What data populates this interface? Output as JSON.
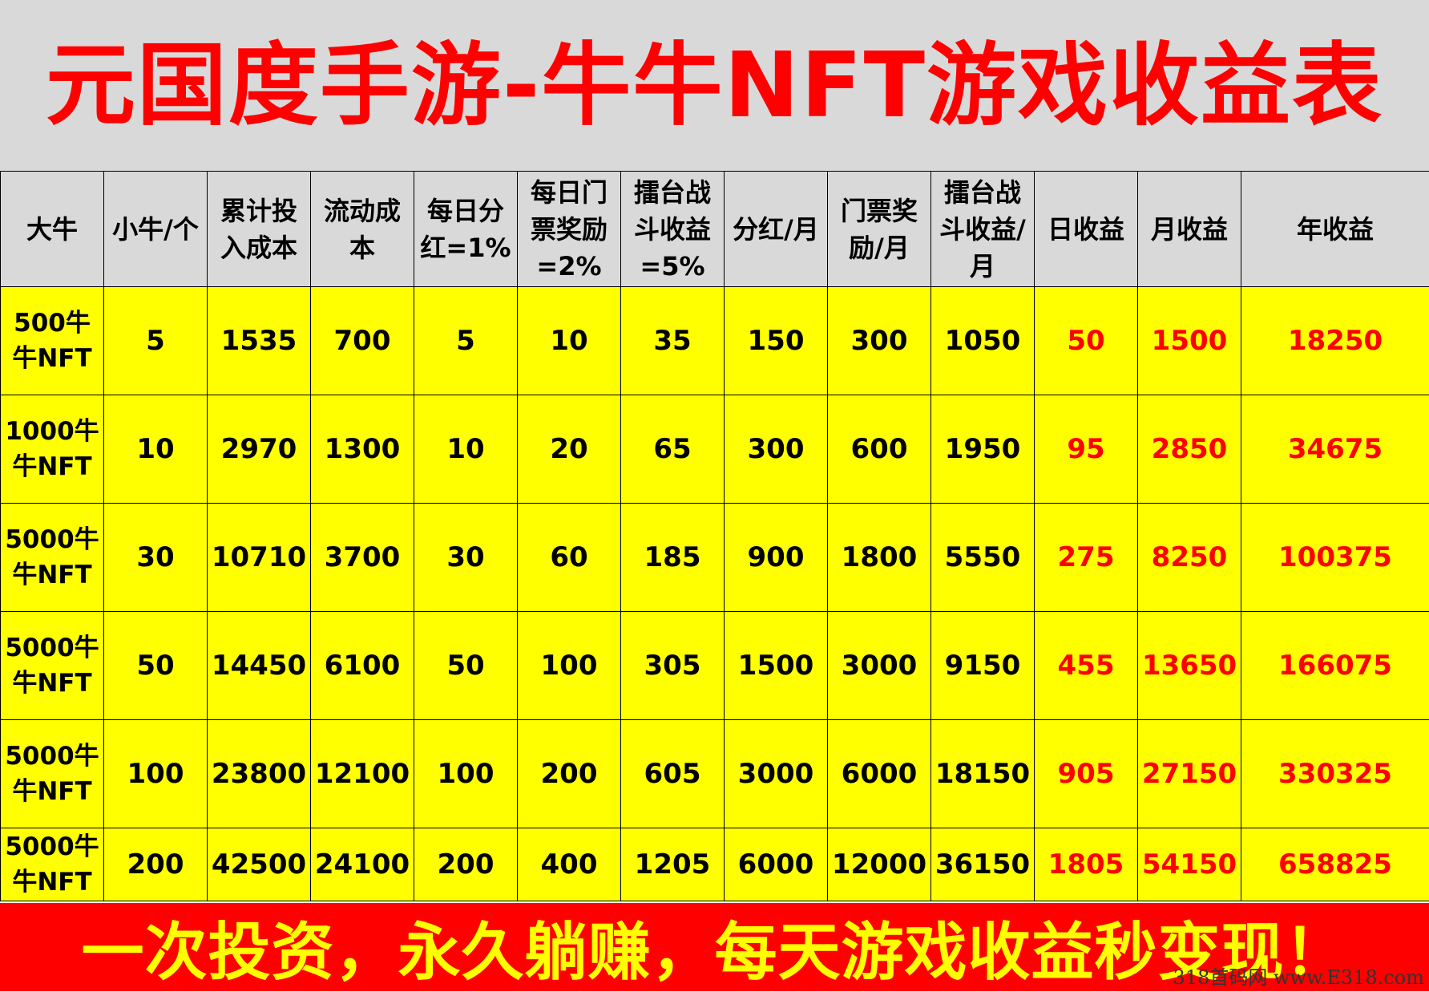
{
  "title": "元国度手游-牛牛NFT游戏收益表",
  "headers": [
    [
      "大牛"
    ],
    [
      "小牛/个"
    ],
    [
      "累计投",
      "入成本"
    ],
    [
      "流动成",
      "本"
    ],
    [
      "每日分",
      "红=1%"
    ],
    [
      "每日门",
      "票奖励",
      "=2%"
    ],
    [
      "擂台战",
      "斗收益",
      "=5%"
    ],
    [
      "分红/月"
    ],
    [
      "门票奖",
      "励/月"
    ],
    [
      "擂台战",
      "斗收益/",
      "月"
    ],
    [
      "日收益"
    ],
    [
      "月收益"
    ],
    [
      "年收益"
    ]
  ],
  "rows": [
    [
      [
        "500牛",
        "牛NFT"
      ],
      "5",
      "1535",
      "700",
      "5",
      "10",
      "35",
      "150",
      "300",
      "1050",
      "50",
      "1500",
      "18250"
    ],
    [
      [
        "1000牛",
        "牛NFT"
      ],
      "10",
      "2970",
      "1300",
      "10",
      "20",
      "65",
      "300",
      "600",
      "1950",
      "95",
      "2850",
      "34675"
    ],
    [
      [
        "5000牛",
        "牛NFT"
      ],
      "30",
      "10710",
      "3700",
      "30",
      "60",
      "185",
      "900",
      "1800",
      "5550",
      "275",
      "8250",
      "100375"
    ],
    [
      [
        "5000牛",
        "牛NFT"
      ],
      "50",
      "14450",
      "6100",
      "50",
      "100",
      "305",
      "1500",
      "3000",
      "9150",
      "455",
      "13650",
      "166075"
    ],
    [
      [
        "5000牛",
        "牛NFT"
      ],
      "100",
      "23800",
      "12100",
      "100",
      "200",
      "605",
      "3000",
      "6000",
      "18150",
      "905",
      "27150",
      "330325"
    ],
    [
      [
        "5000牛",
        "牛NFT"
      ],
      "200",
      "42500",
      "24100",
      "200",
      "400",
      "1205",
      "6000",
      "12000",
      "36150",
      "1805",
      "54150",
      "658825"
    ]
  ],
  "slogan": "一次投资，永久躺赚，每天游戏收益秒变现！",
  "watermark": "318首码网 www.E318.com",
  "colors": {
    "title_text": "#ff0000",
    "title_bg": "#d9d9d9",
    "row_bg": "#ffff00",
    "income_text": "#ff0000",
    "slogan_bg": "#ff0000",
    "slogan_text": "#ffff00"
  }
}
